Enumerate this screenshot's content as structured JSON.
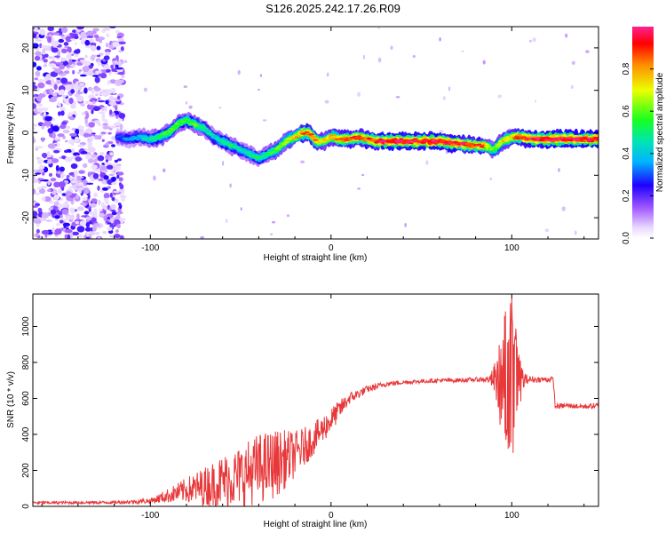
{
  "title": "S126.2025.242.17.26.R09",
  "chart_data": [
    {
      "type": "heatmap",
      "title": "",
      "xlabel": "Height of straight line (km)",
      "ylabel": "Frequency (Hz)",
      "xlim": [
        -165,
        148
      ],
      "ylim": [
        -25,
        25
      ],
      "xticks": [
        -100,
        0,
        100
      ],
      "yticks": [
        -20,
        -10,
        0,
        10,
        20
      ],
      "colorbar": {
        "label": "Normalized spectral amplitude",
        "range": [
          0,
          1
        ],
        "ticks": [
          0.0,
          0.2,
          0.4,
          0.6,
          0.8
        ]
      },
      "ridge": {
        "x": [
          -118,
          -112,
          -106,
          -100,
          -95,
          -90,
          -85,
          -80,
          -75,
          -70,
          -65,
          -60,
          -55,
          -50,
          -45,
          -40,
          -35,
          -30,
          -25,
          -20,
          -16,
          -12,
          -8,
          -4,
          0,
          5,
          10,
          15,
          20,
          25,
          30,
          40,
          50,
          60,
          70,
          80,
          85,
          90,
          95,
          100,
          105,
          110,
          120,
          130,
          140,
          148
        ],
        "freq": [
          -1,
          -1.5,
          -1,
          -1.5,
          -1,
          0,
          2,
          3,
          2,
          1,
          -1,
          -2,
          -3,
          -4,
          -5,
          -6,
          -5,
          -4,
          -2,
          -1,
          0,
          0,
          -2,
          -2,
          -1,
          -1.5,
          -1.5,
          -1,
          -1.5,
          -2,
          -2,
          -2,
          -2,
          -2,
          -2.5,
          -3,
          -3,
          -4,
          -2,
          -1,
          -1,
          -1.5,
          -1.5,
          -1.5,
          -1.5,
          -1.5
        ],
        "amplitude": [
          0.3,
          0.35,
          0.4,
          0.5,
          0.55,
          0.6,
          0.6,
          0.55,
          0.6,
          0.5,
          0.45,
          0.5,
          0.5,
          0.45,
          0.5,
          0.5,
          0.55,
          0.6,
          0.65,
          0.75,
          0.85,
          0.9,
          0.8,
          0.75,
          0.8,
          0.85,
          0.9,
          0.9,
          0.9,
          0.95,
          1,
          1,
          1,
          1,
          0.95,
          0.9,
          0.85,
          0.6,
          0.75,
          0.8,
          0.9,
          0.95,
          1,
          1,
          1,
          1
        ]
      }
    },
    {
      "type": "line",
      "title": "",
      "xlabel": "Height of straight line (km)",
      "ylabel": "SNR (10 * v/v)",
      "xlim": [
        -165,
        148
      ],
      "ylim": [
        0,
        1180
      ],
      "xticks": [
        -100,
        0,
        100
      ],
      "yticks": [
        0,
        200,
        400,
        600,
        800,
        1000
      ],
      "color": "#e8383a",
      "envelope": {
        "x": [
          -165,
          -120,
          -100,
          -90,
          -80,
          -70,
          -60,
          -50,
          -40,
          -30,
          -20,
          -10,
          0,
          10,
          20,
          30,
          40,
          50,
          60,
          70,
          80,
          88,
          92,
          96,
          100,
          104,
          108,
          115,
          123,
          124,
          130,
          140,
          148
        ],
        "base": [
          20,
          22,
          30,
          60,
          90,
          110,
          140,
          170,
          210,
          240,
          290,
          370,
          480,
          600,
          650,
          680,
          690,
          695,
          700,
          700,
          705,
          705,
          700,
          680,
          680,
          700,
          705,
          705,
          705,
          555,
          560,
          555,
          560
        ],
        "amp": [
          8,
          8,
          15,
          40,
          70,
          110,
          150,
          170,
          200,
          190,
          130,
          90,
          70,
          35,
          20,
          15,
          12,
          12,
          12,
          12,
          12,
          20,
          150,
          400,
          500,
          150,
          25,
          15,
          15,
          15,
          15,
          15,
          15
        ]
      }
    }
  ]
}
